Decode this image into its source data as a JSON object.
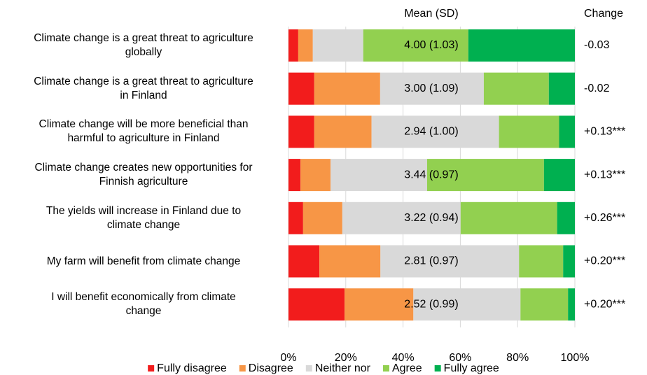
{
  "chart_data": {
    "type": "stacked_bar_horizontal",
    "categories": [
      "Climate change is a great threat to agriculture\nglobally",
      "Climate change is a great threat to agriculture\nin Finland",
      "Climate change will be more beneficial than\nharmful to agriculture in Finland",
      "Climate change creates new opportunities for\nFinnish agriculture",
      "The yields will increase in Finland due to\nclimate change",
      "My farm will benefit from climate change",
      "I will benefit economically from climate\nchange"
    ],
    "series": [
      {
        "name": "Fully disagree",
        "color": "#f21c1c",
        "values": [
          3.4,
          9.0,
          9.0,
          4.2,
          5.1,
          10.8,
          19.6
        ]
      },
      {
        "name": "Disagree",
        "color": "#f79646",
        "values": [
          5.1,
          23.0,
          20.0,
          10.5,
          13.7,
          21.3,
          24.0
        ]
      },
      {
        "name": "Neither nor",
        "color": "#d9d9d9",
        "values": [
          17.6,
          36.2,
          44.5,
          33.7,
          41.3,
          48.4,
          37.4
        ]
      },
      {
        "name": "Agree",
        "color": "#92d050",
        "values": [
          36.7,
          22.7,
          21.0,
          40.8,
          33.7,
          15.4,
          16.6
        ]
      },
      {
        "name": "Fully agree",
        "color": "#00b050",
        "values": [
          37.2,
          9.1,
          5.5,
          10.8,
          6.2,
          4.1,
          2.4
        ]
      }
    ],
    "mean_header": "Mean (SD)",
    "means": [
      "4.00 (1.03)",
      "3.00 (1.09)",
      "2.94 (1.00)",
      "3.44 (0.97)",
      "3.22 (0.94)",
      "2.81 (0.97)",
      "2.52 (0.99)"
    ],
    "change_header": "Change",
    "changes": [
      "-0.03",
      "-0.02",
      "+0.13***",
      "+0.13***",
      "+0.26***",
      "+0.20***",
      "+0.20***"
    ],
    "xlim": [
      0,
      100
    ],
    "xticks": [
      {
        "value": 0,
        "label": "0%"
      },
      {
        "value": 20,
        "label": "20%"
      },
      {
        "value": 40,
        "label": "40%"
      },
      {
        "value": 60,
        "label": "60%"
      },
      {
        "value": 80,
        "label": "80%"
      },
      {
        "value": 100,
        "label": "100%"
      }
    ],
    "grid": true,
    "legend": "bottom"
  }
}
